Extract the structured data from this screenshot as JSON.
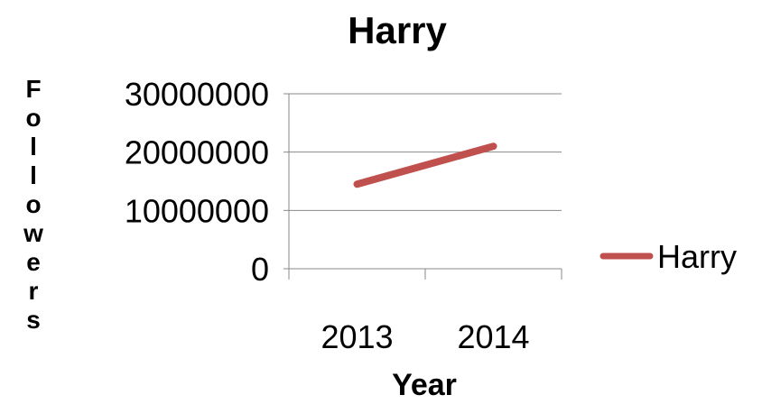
{
  "chart_data": {
    "type": "line",
    "title": "Harry",
    "xlabel": "Year",
    "ylabel": "Followers",
    "categories": [
      "2013",
      "2014"
    ],
    "series": [
      {
        "name": "Harry",
        "values": [
          14500000,
          21000000
        ],
        "color": "#c0504d"
      }
    ],
    "ylim": [
      0,
      30000000
    ],
    "yticks": [
      0,
      10000000,
      20000000,
      30000000
    ],
    "ytick_labels": [
      "0",
      "10000000",
      "20000000",
      "30000000"
    ],
    "grid": true,
    "legend_position": "right"
  }
}
